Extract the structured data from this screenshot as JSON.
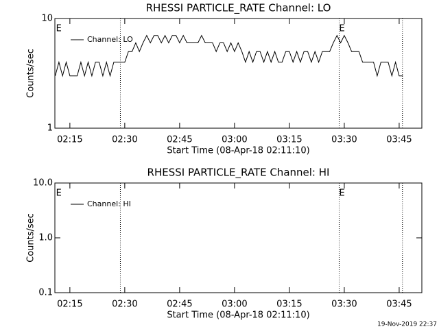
{
  "chart_data": [
    {
      "type": "line",
      "title": "RHESSI PARTICLE_RATE Channel: LO",
      "xlabel": "Start Time (08-Apr-18 02:11:10)",
      "ylabel": "Counts/sec",
      "log_y": true,
      "ylim": [
        1,
        10
      ],
      "yticks": [
        1,
        10
      ],
      "xlim": [
        130.9,
        231.2
      ],
      "xticks": [
        {
          "value": 135,
          "label": "02:15"
        },
        {
          "value": 150,
          "label": "02:30"
        },
        {
          "value": 165,
          "label": "02:45"
        },
        {
          "value": 180,
          "label": "03:00"
        },
        {
          "value": 195,
          "label": "03:15"
        },
        {
          "value": 210,
          "label": "03:30"
        },
        {
          "value": 225,
          "label": "03:45"
        }
      ],
      "vlines": [
        148.8,
        208.6,
        225.9
      ],
      "annotations": [
        {
          "text": "E",
          "x": 131.2
        },
        {
          "text": "E",
          "x": 208.6
        }
      ],
      "x": [
        131,
        132,
        133,
        134,
        135,
        136,
        137,
        138,
        139,
        140,
        141,
        142,
        143,
        144,
        145,
        146,
        147,
        148,
        149,
        150,
        151,
        152,
        153,
        154,
        155,
        156,
        157,
        158,
        159,
        160,
        161,
        162,
        163,
        164,
        165,
        166,
        167,
        168,
        169,
        170,
        171,
        172,
        173,
        174,
        175,
        176,
        177,
        178,
        179,
        180,
        181,
        182,
        183,
        184,
        185,
        186,
        187,
        188,
        189,
        190,
        191,
        192,
        193,
        194,
        195,
        196,
        197,
        198,
        199,
        200,
        201,
        202,
        203,
        204,
        205,
        206,
        207,
        208,
        209,
        210,
        211,
        212,
        213,
        214,
        215,
        216,
        217,
        218,
        219,
        220,
        221,
        222,
        223,
        224,
        225,
        226
      ],
      "series": [
        {
          "name": "Channel: LO",
          "color": "#000000",
          "values": [
            3,
            4,
            3,
            4,
            3,
            3,
            3,
            4,
            3,
            4,
            3,
            4,
            4,
            3,
            4,
            3,
            4,
            4,
            4,
            4,
            5,
            5,
            6,
            5,
            6,
            7,
            6,
            7,
            7,
            6,
            7,
            6,
            7,
            7,
            6,
            7,
            6,
            6,
            6,
            6,
            7,
            6,
            6,
            6,
            5,
            6,
            6,
            5,
            6,
            5,
            6,
            5,
            4,
            5,
            4,
            5,
            5,
            4,
            5,
            4,
            5,
            4,
            4,
            5,
            5,
            4,
            5,
            4,
            5,
            5,
            4,
            5,
            4,
            5,
            5,
            5,
            6,
            7,
            6,
            7,
            6,
            5,
            5,
            5,
            4,
            4,
            4,
            4,
            3,
            4,
            4,
            4,
            3,
            4,
            3,
            3
          ]
        }
      ]
    },
    {
      "type": "line",
      "title": "RHESSI PARTICLE_RATE Channel: HI",
      "xlabel": "Start Time (08-Apr-18 02:11:10)",
      "ylabel": "Counts/sec",
      "log_y": true,
      "ylim": [
        0.1,
        10
      ],
      "yticks": [
        0.1,
        {
          "value": 1,
          "label": "1.0"
        },
        {
          "value": 10,
          "label": "10.0"
        }
      ],
      "xlim": [
        130.9,
        231.2
      ],
      "xticks": [
        {
          "value": 135,
          "label": "02:15"
        },
        {
          "value": 150,
          "label": "02:30"
        },
        {
          "value": 165,
          "label": "02:45"
        },
        {
          "value": 180,
          "label": "03:00"
        },
        {
          "value": 195,
          "label": "03:15"
        },
        {
          "value": 210,
          "label": "03:30"
        },
        {
          "value": 225,
          "label": "03:45"
        }
      ],
      "vlines": [
        148.8,
        208.6,
        225.9
      ],
      "annotations": [
        {
          "text": "E",
          "x": 131.2
        },
        {
          "text": "E",
          "x": 208.6
        }
      ],
      "x": [],
      "series": [
        {
          "name": "Channel: HI",
          "color": "#000000",
          "values": []
        }
      ]
    }
  ],
  "footer": "19-Nov-2019 22:37"
}
